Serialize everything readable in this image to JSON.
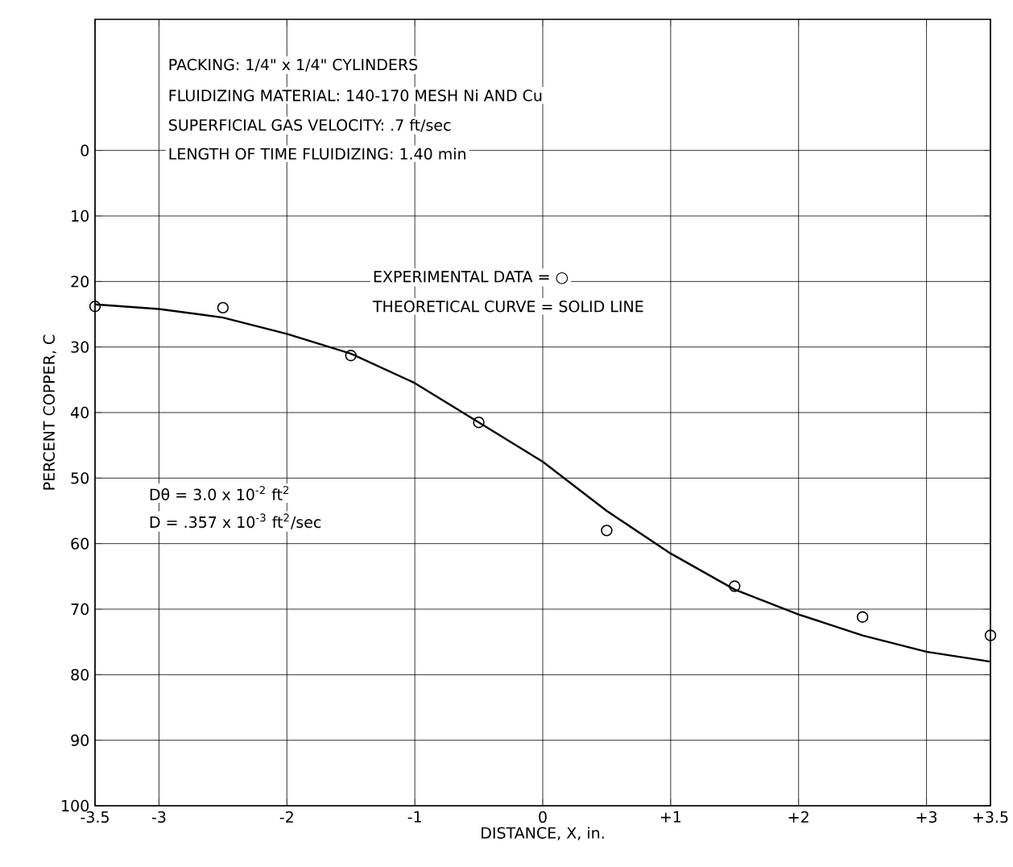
{
  "chart_data": {
    "type": "scatter",
    "xlabel": "DISTANCE, X, in.",
    "ylabel": "PERCENT COPPER, C",
    "xlim": [
      -3.5,
      3.5
    ],
    "xticks": [
      -3.5,
      -3,
      -2,
      -1,
      0,
      {
        "value": 1,
        "label": "+1"
      },
      {
        "value": 2,
        "label": "+2"
      },
      {
        "value": 3,
        "label": "+3"
      },
      {
        "value": 3.5,
        "label": "+3.5"
      }
    ],
    "ylim": [
      100,
      -20
    ],
    "yticks": [
      0,
      10,
      20,
      30,
      40,
      50,
      60,
      70,
      80,
      90,
      100
    ],
    "grid": true,
    "series": [
      {
        "type": "line",
        "color": "#000000",
        "marker": "none",
        "line_style": "solid",
        "x": [
          -3.5,
          -3,
          -2.5,
          -2,
          -1.5,
          -1,
          -0.5,
          0,
          0.5,
          1,
          1.5,
          2,
          2.5,
          3,
          3.5
        ],
        "values": [
          23.5,
          24.2,
          25.5,
          28,
          31,
          35.5,
          41.5,
          47.5,
          55,
          61.5,
          67,
          70.8,
          74,
          76.5,
          78
        ]
      },
      {
        "color": "#000000",
        "marker": "circle",
        "x": [
          -3.5,
          -2.5,
          -1.5,
          -0.5,
          0.5,
          1.5,
          2.5,
          3.5
        ],
        "values": [
          23.8,
          24,
          31.3,
          41.5,
          58,
          66.5,
          71.2,
          74
        ]
      }
    ],
    "annotations": [
      "PACKING: 1/4\" x 1/4\" CYLINDERS",
      "FLUIDIZING MATERIAL: 140-170 MESH Ni AND Cu",
      "SUPERFICIAL GAS VELOCITY: .7 ft/sec",
      "LENGTH OF TIME FLUIDIZING: 1.40 min",
      "EXPERIMENTAL DATA = ○",
      "THEORETICAL CURVE  =  SOLID LINE",
      "Dθ = 3.0 x 10$^{-2}$ ft$^{2}$",
      "D  = .357 x 10$^{-3}$ ft$^{2}$/sec"
    ]
  }
}
